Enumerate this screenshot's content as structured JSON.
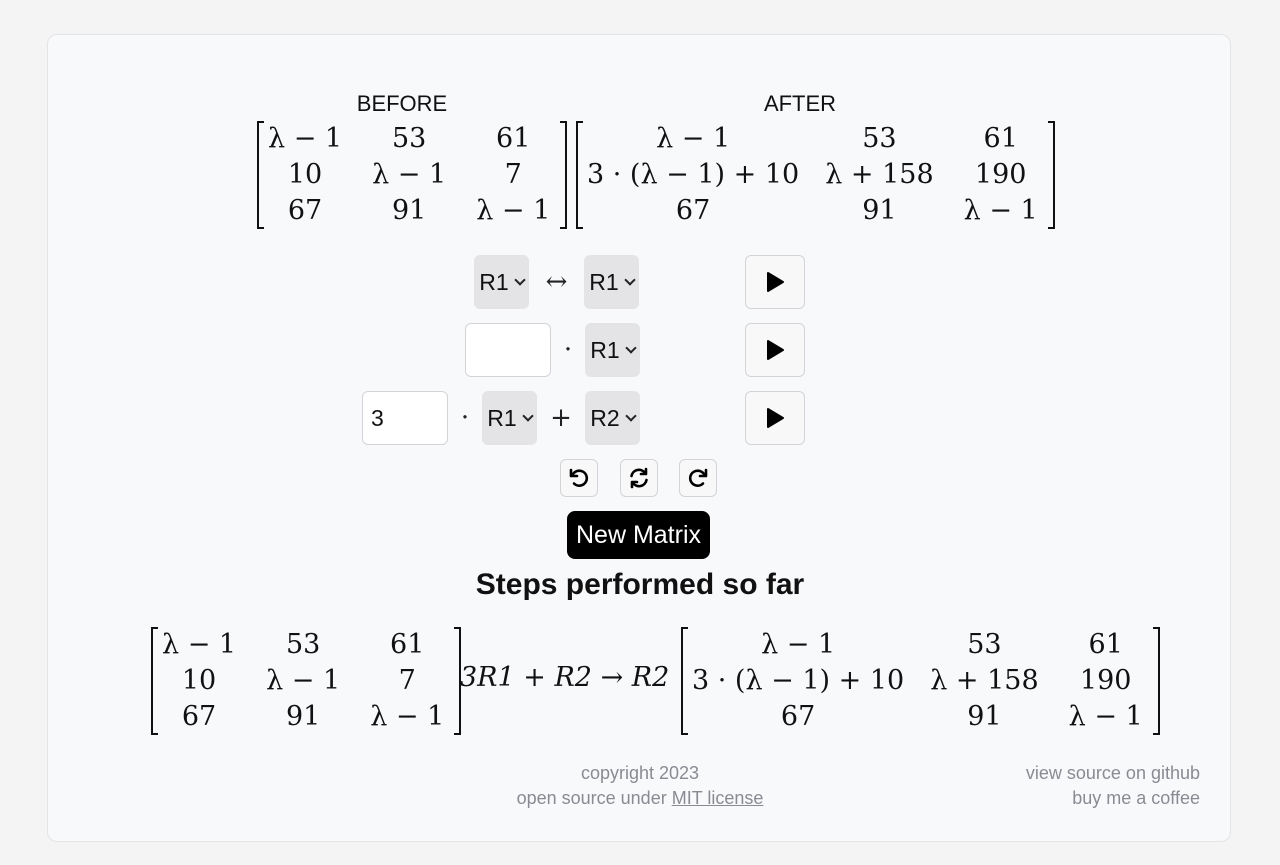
{
  "labels": {
    "before": "BEFORE",
    "after": "AFTER"
  },
  "before_matrix": [
    [
      "λ − 1",
      "53",
      "61"
    ],
    [
      "10",
      "λ − 1",
      "7"
    ],
    [
      "67",
      "91",
      "λ − 1"
    ]
  ],
  "after_matrix": [
    [
      "λ − 1",
      "53",
      "61"
    ],
    [
      "3 · (λ − 1) + 10",
      "λ + 158",
      "190"
    ],
    [
      "67",
      "91",
      "λ − 1"
    ]
  ],
  "operations": {
    "swap": {
      "row_a": "R1",
      "symbol": "↔",
      "row_b": "R1"
    },
    "scale": {
      "factor_value": "",
      "dot": "·",
      "row": "R1"
    },
    "add": {
      "factor_value": "3",
      "dot": "·",
      "row_src": "R1",
      "plus": "+",
      "row_dst": "R2"
    }
  },
  "icons": {
    "play": "play-icon",
    "undo": "undo-icon",
    "reset": "refresh-icon",
    "redo": "redo-icon"
  },
  "new_matrix_label": "New Matrix",
  "steps_title": "Steps performed so far",
  "step_operation": "3R1 + R2 → R2",
  "footer": {
    "copyright": "copyright 2023",
    "license_prefix": "open source under ",
    "license_link": "MIT license",
    "source_link": "view source on github",
    "coffee_link": "buy me a coffee"
  }
}
